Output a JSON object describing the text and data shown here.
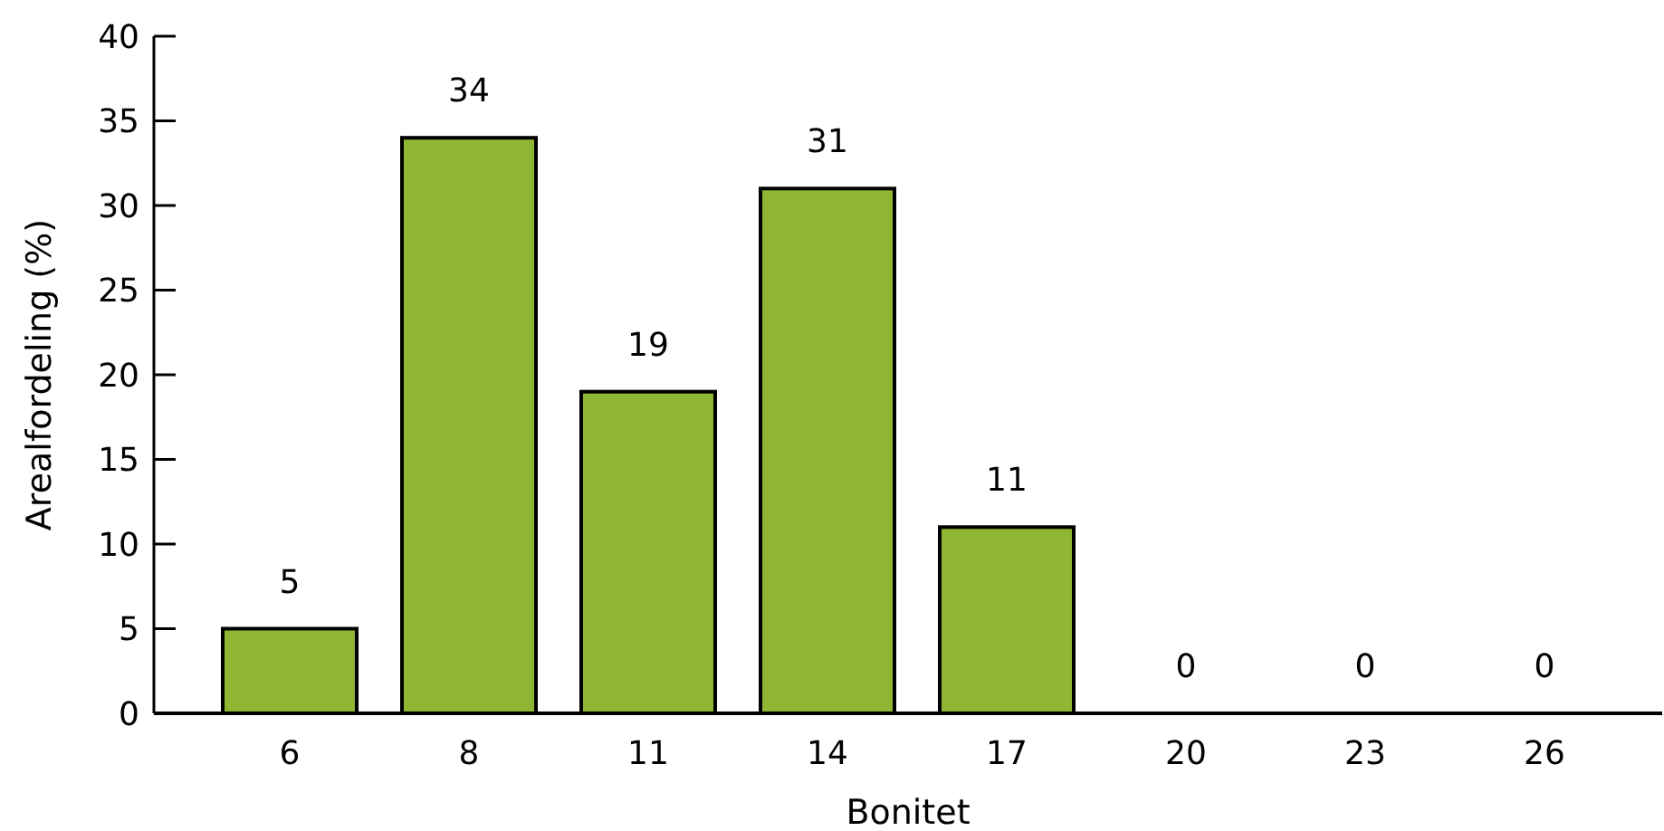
{
  "chart_data": {
    "type": "bar",
    "xlabel": "Bonitet",
    "ylabel": "Arealfordeling (%)",
    "categories": [
      "6",
      "8",
      "11",
      "14",
      "17",
      "20",
      "23",
      "26"
    ],
    "values": [
      5,
      34,
      19,
      31,
      11,
      0,
      0,
      0
    ],
    "color": "#8fb632",
    "ylim": [
      0,
      40
    ],
    "yticks": [
      0,
      5,
      10,
      15,
      20,
      25,
      30,
      35,
      40
    ],
    "data_labels": true,
    "grid": false
  }
}
